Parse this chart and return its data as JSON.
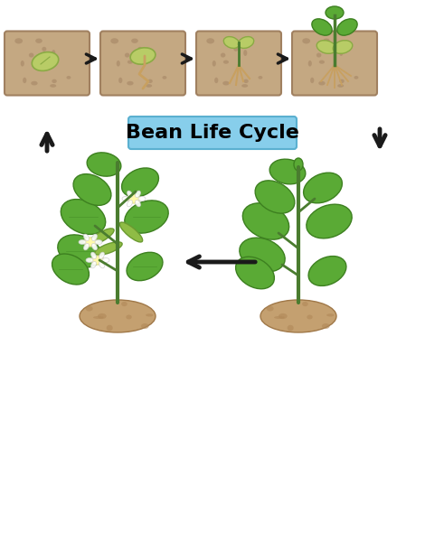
{
  "title": "Bean Life Cycle",
  "title_bg": "#87CEEB",
  "title_color": "#000000",
  "title_fontsize": 16,
  "background_color": "#ffffff",
  "soil_color": "#C4A882",
  "soil_dark": "#A08060",
  "stem_color": "#4A7C2F",
  "leaf_color": "#5AAA35",
  "leaf_dark": "#3D8020",
  "bean_color": "#B8CC66",
  "root_color": "#C8A060",
  "dirt_color": "#C4A070",
  "arrow_color": "#1a1a1a",
  "flower_color": "#ffffff",
  "pod_color": "#8FBC45"
}
